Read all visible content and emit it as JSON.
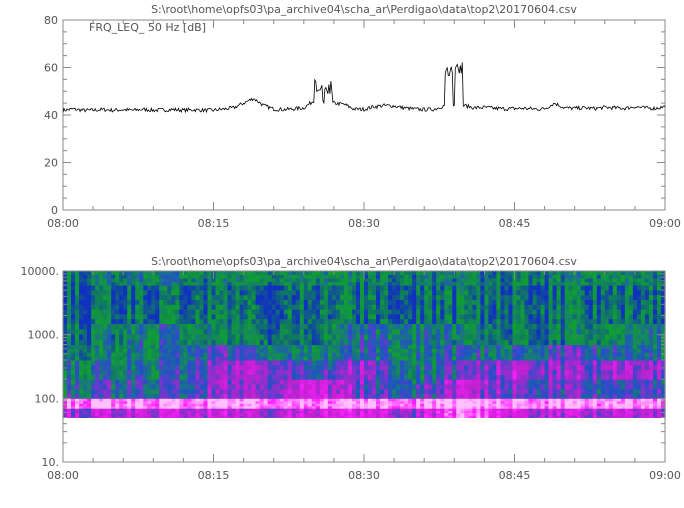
{
  "chart_data": [
    {
      "type": "line",
      "title": "S:\\root\\home\\opfs03\\pa_archive04\\scha_ar\\Perdigao\\data\\top2\\20170604.csv",
      "annotation": "FRQ_LEQ_ 50 Hz [dB]",
      "xlabel": "",
      "ylabel": "",
      "xlim": [
        "08:00",
        "09:00"
      ],
      "ylim": [
        0,
        80
      ],
      "x_tick_labels": [
        "08:00",
        "08:15",
        "08:30",
        "08:45",
        "09:00"
      ],
      "y_tick_labels": [
        "0",
        "20",
        "40",
        "60",
        "80"
      ],
      "x_minutes": [
        0,
        1,
        2,
        3,
        4,
        5,
        6,
        7,
        8,
        9,
        10,
        11,
        12,
        13,
        14,
        15,
        16,
        17,
        18,
        19,
        20,
        21,
        22,
        23,
        24,
        25,
        26,
        27,
        28,
        29,
        30,
        31,
        32,
        33,
        34,
        35,
        36,
        37,
        38,
        39,
        40,
        41,
        42,
        43,
        44,
        45,
        46,
        47,
        48,
        49,
        50,
        51,
        52,
        53,
        54,
        55,
        56,
        57,
        58,
        59,
        60
      ],
      "values": [
        42,
        42.5,
        42,
        42,
        42.3,
        42,
        42.2,
        42,
        42.4,
        42,
        42.1,
        42.3,
        42,
        42.2,
        42,
        42,
        42.5,
        43,
        45,
        47,
        44,
        42.5,
        42.3,
        42.6,
        43,
        46,
        55,
        45,
        44.5,
        42.5,
        42.4,
        43.5,
        44,
        43.8,
        43,
        42.5,
        42.3,
        42.4,
        44,
        62,
        44,
        43,
        43.2,
        42.8,
        42.6,
        42.7,
        42.8,
        42.5,
        42.6,
        45,
        43,
        42.8,
        43,
        42.7,
        43.2,
        43,
        42.8,
        43.5,
        43,
        42.8,
        43.5
      ],
      "line_color": "#000000",
      "grid": false
    },
    {
      "type": "heatmap",
      "title": "S:\\root\\home\\opfs03\\pa_archive04\\scha_ar\\Perdigao\\data\\top2\\20170604.csv",
      "xlabel": "",
      "ylabel": "",
      "xlim": [
        "08:00",
        "09:00"
      ],
      "ylim": [
        10,
        10000
      ],
      "y_scale": "log",
      "x_tick_labels": [
        "08:00",
        "08:15",
        "08:30",
        "08:45",
        "09:00"
      ],
      "y_tick_labels": [
        "10.",
        "100.",
        "1000.",
        "10000."
      ],
      "frequency_bands_hz": [
        50,
        70,
        100,
        200,
        400,
        700,
        1500,
        3000,
        6000,
        10000
      ],
      "time_minutes": [
        0,
        5,
        10,
        15,
        20,
        25,
        30,
        35,
        40,
        45,
        50,
        55,
        60
      ],
      "levels": [
        [
          0.6,
          0.6,
          0.65,
          0.6,
          0.6,
          0.7,
          0.65,
          0.6,
          0.9,
          0.65,
          0.6,
          0.6,
          0.6
        ],
        [
          0.95,
          0.95,
          0.95,
          0.95,
          0.95,
          0.95,
          0.95,
          0.95,
          1.0,
          0.95,
          0.95,
          0.95,
          0.95
        ],
        [
          0.35,
          0.4,
          0.4,
          0.5,
          0.55,
          0.7,
          0.45,
          0.4,
          0.6,
          0.5,
          0.45,
          0.4,
          0.45
        ],
        [
          0.3,
          0.3,
          0.35,
          0.5,
          0.6,
          0.4,
          0.55,
          0.3,
          0.45,
          0.6,
          0.5,
          0.55,
          0.55
        ],
        [
          0.2,
          0.25,
          0.3,
          0.45,
          0.35,
          0.3,
          0.35,
          0.3,
          0.35,
          0.35,
          0.45,
          0.35,
          0.35
        ],
        [
          0.15,
          0.2,
          0.35,
          0.15,
          0.15,
          0.15,
          0.35,
          0.35,
          0.2,
          0.15,
          0.15,
          0.2,
          0.35
        ],
        [
          0.1,
          0.1,
          0.12,
          0.12,
          0.1,
          0.15,
          0.1,
          0.12,
          0.1,
          0.15,
          0.12,
          0.1,
          0.12
        ],
        [
          0.08,
          0.08,
          0.1,
          0.1,
          0.08,
          0.15,
          0.1,
          0.1,
          0.12,
          0.12,
          0.1,
          0.1,
          0.1
        ],
        [
          0.15,
          0.2,
          0.3,
          0.15,
          0.2,
          0.25,
          0.15,
          0.2,
          0.2,
          0.15,
          0.2,
          0.2,
          0.2
        ]
      ],
      "colormap": [
        "#1030c0",
        "#10a030",
        "#2050c8",
        "#c020d0",
        "#ff20ff",
        "#ffc0ff"
      ]
    }
  ]
}
